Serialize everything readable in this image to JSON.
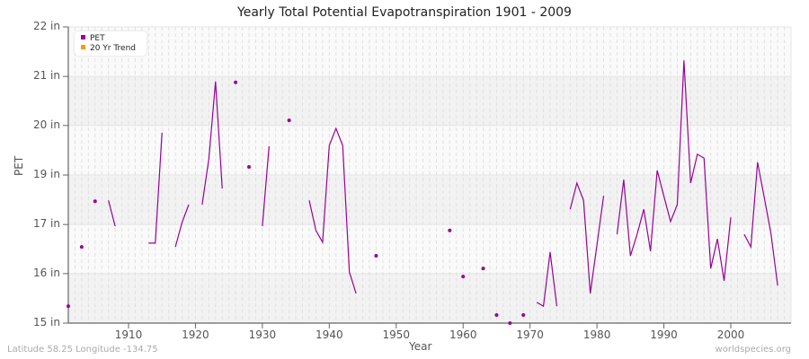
{
  "chart_data": {
    "type": "line",
    "title": "Yearly Total Potential Evapotranspiration 1901 - 2009",
    "xlabel": "Year",
    "ylabel": "PET",
    "xlim": [
      1901,
      2009
    ],
    "ylim": [
      15,
      22
    ],
    "y_ticks": [
      {
        "value": 22,
        "label": "22 in"
      },
      {
        "value": 20.83,
        "label": "21 in"
      },
      {
        "value": 19.67,
        "label": "20 in"
      },
      {
        "value": 18.5,
        "label": "19 in"
      },
      {
        "value": 17.33,
        "label": "17 in"
      },
      {
        "value": 16.17,
        "label": "16 in"
      },
      {
        "value": 15,
        "label": "15 in"
      }
    ],
    "x_ticks": [
      1910,
      1920,
      1930,
      1940,
      1950,
      1960,
      1970,
      1980,
      1990,
      2000
    ],
    "grid": true,
    "legend_position": "top-left",
    "legend": [
      {
        "label": "PET",
        "color": "#990099"
      },
      {
        "label": "20 Yr Trend",
        "color": "#ff9900"
      }
    ],
    "series": [
      {
        "name": "PET",
        "color": "#990099",
        "points": [
          [
            1901,
            15.4
          ],
          [
            1903,
            16.8
          ],
          [
            1905,
            17.88
          ],
          [
            1907,
            17.9
          ],
          [
            1908,
            17.29
          ],
          [
            1913,
            16.89
          ],
          [
            1914,
            16.89
          ],
          [
            1915,
            19.5
          ],
          [
            1917,
            16.8
          ],
          [
            1918,
            17.38
          ],
          [
            1919,
            17.8
          ],
          [
            1921,
            17.8
          ],
          [
            1922,
            18.88
          ],
          [
            1923,
            20.71
          ],
          [
            1924,
            18.18
          ],
          [
            1926,
            20.69
          ],
          [
            1928,
            18.69
          ],
          [
            1930,
            17.29
          ],
          [
            1931,
            19.18
          ],
          [
            1934,
            19.79
          ],
          [
            1937,
            17.9
          ],
          [
            1938,
            17.19
          ],
          [
            1939,
            16.91
          ],
          [
            1940,
            19.2
          ],
          [
            1941,
            19.6
          ],
          [
            1942,
            19.2
          ],
          [
            1943,
            16.21
          ],
          [
            1944,
            15.7
          ],
          [
            1947,
            16.59
          ],
          [
            1958,
            17.19
          ],
          [
            1960,
            16.1
          ],
          [
            1963,
            16.29
          ],
          [
            1965,
            15.19
          ],
          [
            1967,
            15.0
          ],
          [
            1969,
            15.19
          ],
          [
            1971,
            15.49
          ],
          [
            1972,
            15.4
          ],
          [
            1973,
            16.68
          ],
          [
            1974,
            15.4
          ],
          [
            1976,
            17.69
          ],
          [
            1977,
            18.31
          ],
          [
            1978,
            17.9
          ],
          [
            1979,
            15.7
          ],
          [
            1980,
            16.85
          ],
          [
            1981,
            18.01
          ],
          [
            1983,
            17.1
          ],
          [
            1984,
            18.39
          ],
          [
            1985,
            16.59
          ],
          [
            1986,
            17.1
          ],
          [
            1987,
            17.69
          ],
          [
            1988,
            16.7
          ],
          [
            1989,
            18.61
          ],
          [
            1990,
            18.0
          ],
          [
            1991,
            17.4
          ],
          [
            1992,
            17.8
          ],
          [
            1993,
            21.21
          ],
          [
            1994,
            18.31
          ],
          [
            1995,
            18.99
          ],
          [
            1996,
            18.9
          ],
          [
            1997,
            16.29
          ],
          [
            1998,
            16.99
          ],
          [
            1999,
            16.0
          ],
          [
            2000,
            17.5
          ],
          [
            2002,
            17.1
          ],
          [
            2003,
            16.8
          ],
          [
            2004,
            18.8
          ],
          [
            2005,
            17.97
          ],
          [
            2006,
            17.12
          ],
          [
            2007,
            15.89
          ]
        ]
      },
      {
        "name": "20 Yr Trend",
        "color": "#ff9900",
        "points": []
      }
    ]
  },
  "footer": {
    "left": "Latitude 58.25 Longitude -134.75",
    "right": "worldspecies.org"
  }
}
